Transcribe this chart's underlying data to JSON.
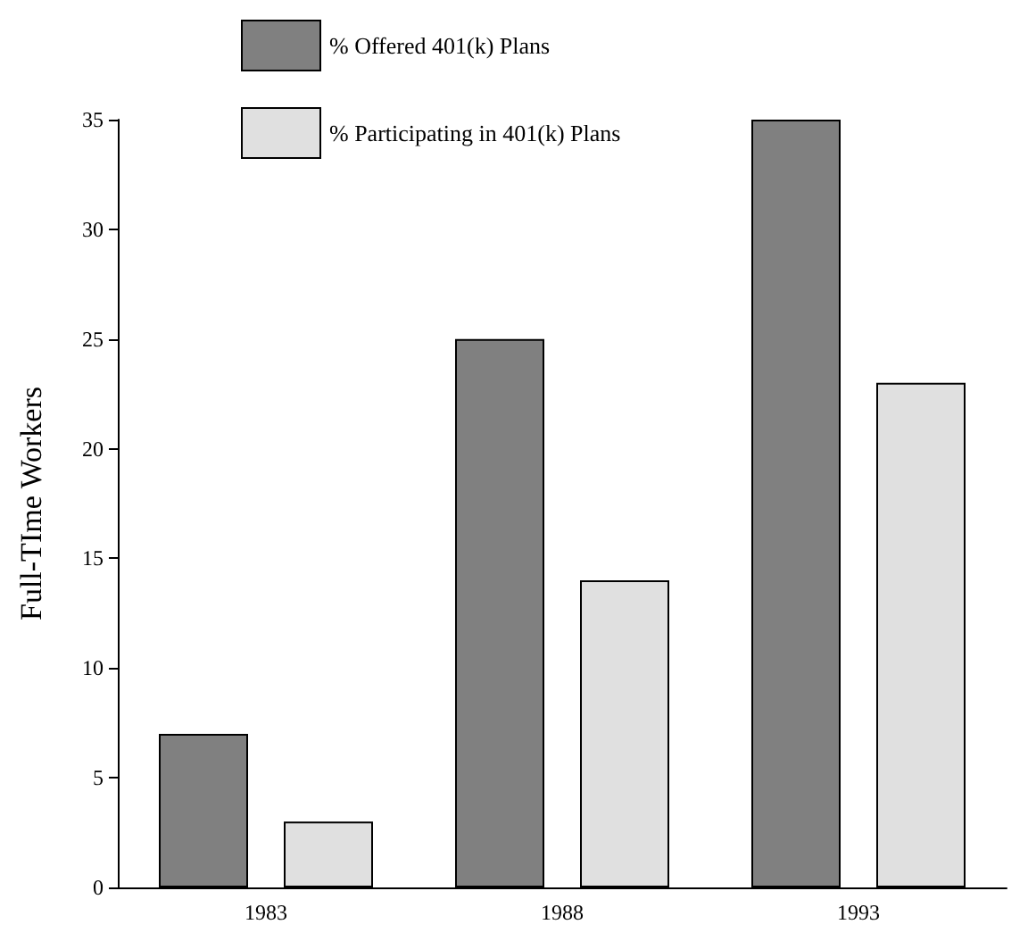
{
  "chart_data": {
    "type": "bar",
    "ylabel": "Full-TIme Workers",
    "categories": [
      "1983",
      "1988",
      "1993"
    ],
    "series": [
      {
        "name": "% Offered 401(k) Plans",
        "color": "#808080",
        "values": [
          7,
          25,
          35
        ]
      },
      {
        "name": "% Participating in 401(k) Plans",
        "color": "#e0e0e0",
        "values": [
          3,
          14,
          23
        ]
      }
    ],
    "ylim": [
      0,
      35
    ],
    "yticks": [
      0,
      5,
      10,
      15,
      20,
      25,
      30,
      35
    ],
    "grid": false,
    "legend": "top"
  }
}
